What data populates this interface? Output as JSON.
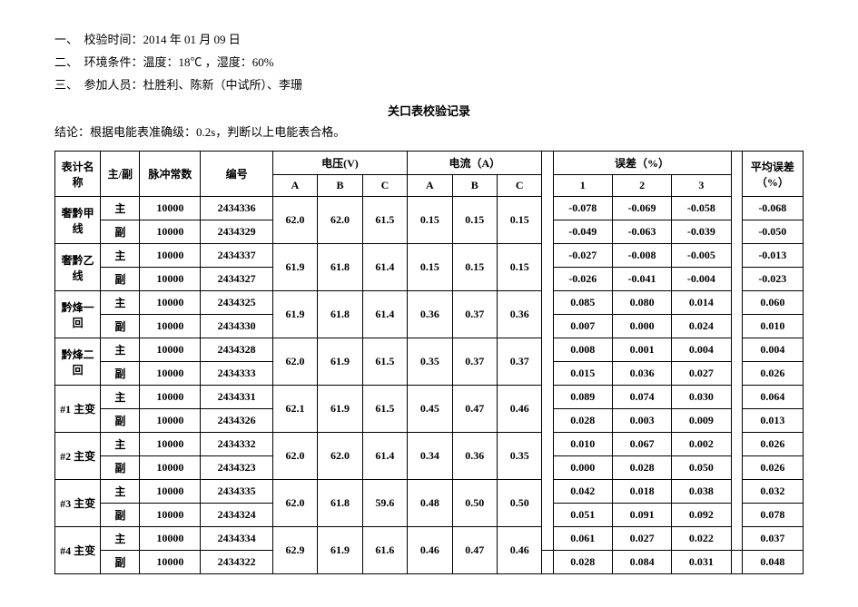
{
  "meta": {
    "line1_label": "一、　校验时间：",
    "line1_value": "2014 年 01 月 09 日",
    "line2_label": "二、　环境条件：",
    "line2_value": "温度：18℃ ，湿度：60%",
    "line3_label": "三、　参加人员：",
    "line3_value": "杜胜利、陈新（中试所）、李珊"
  },
  "title": "关口表校验记录",
  "conclusion": "结论：根据电能表准确级：0.2s，判断以上电能表合格。",
  "headers": {
    "name": "表计名称",
    "role": "主/副",
    "pulse": "脉冲常数",
    "id": "编号",
    "voltage": "电压(V)",
    "current": "电流（A）",
    "error": "误差（%）",
    "avg": "平均误差（%）",
    "A": "A",
    "B": "B",
    "C": "C",
    "e1": "1",
    "e2": "2",
    "e3": "3"
  },
  "roles": {
    "main": "主",
    "sub": "副"
  },
  "pulse": "10000",
  "rows": [
    {
      "name": "奢黔甲线",
      "main_id": "2434336",
      "sub_id": "2434329",
      "vA": "62.0",
      "vB": "62.0",
      "vC": "61.5",
      "aA": "0.15",
      "aB": "0.15",
      "aC": "0.15",
      "main_e1": "-0.078",
      "main_e2": "-0.069",
      "main_e3": "-0.058",
      "main_avg": "-0.068",
      "sub_e1": "-0.049",
      "sub_e2": "-0.063",
      "sub_e3": "-0.039",
      "sub_avg": "-0.050"
    },
    {
      "name": "奢黔乙线",
      "main_id": "2434337",
      "sub_id": "2434327",
      "vA": "61.9",
      "vB": "61.8",
      "vC": "61.4",
      "aA": "0.15",
      "aB": "0.15",
      "aC": "0.15",
      "main_e1": "-0.027",
      "main_e2": "-0.008",
      "main_e3": "-0.005",
      "main_avg": "-0.013",
      "sub_e1": "-0.026",
      "sub_e2": "-0.041",
      "sub_e3": "-0.004",
      "sub_avg": "-0.023"
    },
    {
      "name": "黔烽一回",
      "main_id": "2434325",
      "sub_id": "2434330",
      "vA": "61.9",
      "vB": "61.8",
      "vC": "61.4",
      "aA": "0.36",
      "aB": "0.37",
      "aC": "0.36",
      "main_e1": "0.085",
      "main_e2": "0.080",
      "main_e3": "0.014",
      "main_avg": "0.060",
      "sub_e1": "0.007",
      "sub_e2": "0.000",
      "sub_e3": "0.024",
      "sub_avg": "0.010"
    },
    {
      "name": "黔烽二回",
      "main_id": "2434328",
      "sub_id": "2434333",
      "vA": "62.0",
      "vB": "61.9",
      "vC": "61.5",
      "aA": "0.35",
      "aB": "0.37",
      "aC": "0.37",
      "main_e1": "0.008",
      "main_e2": "0.001",
      "main_e3": "0.004",
      "main_avg": "0.004",
      "sub_e1": "0.015",
      "sub_e2": "0.036",
      "sub_e3": "0.027",
      "sub_avg": "0.026"
    },
    {
      "name": "#1 主变",
      "main_id": "2434331",
      "sub_id": "2434326",
      "vA": "62.1",
      "vB": "61.9",
      "vC": "61.5",
      "aA": "0.45",
      "aB": "0.47",
      "aC": "0.46",
      "main_e1": "0.089",
      "main_e2": "0.074",
      "main_e3": "0.030",
      "main_avg": "0.064",
      "sub_e1": "0.028",
      "sub_e2": "0.003",
      "sub_e3": "0.009",
      "sub_avg": "0.013"
    },
    {
      "name": "#2 主变",
      "main_id": "2434332",
      "sub_id": "2434323",
      "vA": "62.0",
      "vB": "62.0",
      "vC": "61.4",
      "aA": "0.34",
      "aB": "0.36",
      "aC": "0.35",
      "main_e1": "0.010",
      "main_e2": "0.067",
      "main_e3": "0.002",
      "main_avg": "0.026",
      "sub_e1": "0.000",
      "sub_e2": "0.028",
      "sub_e3": "0.050",
      "sub_avg": "0.026"
    },
    {
      "name": "#3 主变",
      "main_id": "2434335",
      "sub_id": "2434324",
      "vA": "62.0",
      "vB": "61.8",
      "vC": "59.6",
      "aA": "0.48",
      "aB": "0.50",
      "aC": "0.50",
      "main_e1": "0.042",
      "main_e2": "0.018",
      "main_e3": "0.038",
      "main_avg": "0.032",
      "sub_e1": "0.051",
      "sub_e2": "0.091",
      "sub_e3": "0.092",
      "sub_avg": "0.078"
    },
    {
      "name": "#4 主变",
      "main_id": "2434334",
      "sub_id": "2434322",
      "vA": "62.9",
      "vB": "61.9",
      "vC": "61.6",
      "aA": "0.46",
      "aB": "0.47",
      "aC": "0.46",
      "main_e1": "0.061",
      "main_e2": "0.027",
      "main_e3": "0.022",
      "main_avg": "0.037",
      "sub_e1": "0.028",
      "sub_e2": "0.084",
      "sub_e3": "0.031",
      "sub_avg": "0.048"
    }
  ]
}
